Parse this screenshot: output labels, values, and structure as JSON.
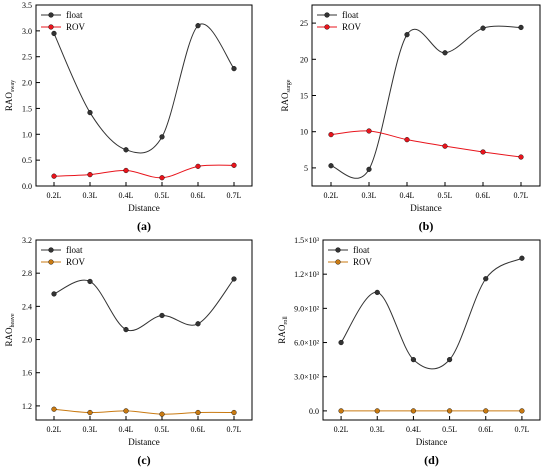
{
  "chart_data": [
    {
      "type": "line",
      "panel_label": "(a)",
      "xlabel": "Distance",
      "ylabel": "RAO",
      "ylabel_sub": "sway",
      "categories": [
        "0.2L",
        "0.3L",
        "0.4L",
        "0.5L",
        "0.6L",
        "0.7L"
      ],
      "ylim": [
        0,
        3.5
      ],
      "yticks": [
        0.0,
        0.5,
        1.0,
        1.5,
        2.0,
        2.5,
        3.0,
        3.5
      ],
      "ytick_labels": [
        "0.0",
        "0.5",
        "1.0",
        "1.5",
        "2.0",
        "2.5",
        "3.0",
        "3.5"
      ],
      "legend": "top-left",
      "series": [
        {
          "name": "float",
          "color": "#333333",
          "values": [
            2.95,
            1.42,
            0.7,
            0.95,
            3.1,
            2.27
          ]
        },
        {
          "name": "ROV",
          "color": "#e8141c",
          "values": [
            0.19,
            0.22,
            0.3,
            0.16,
            0.38,
            0.4
          ]
        }
      ]
    },
    {
      "type": "line",
      "panel_label": "(b)",
      "xlabel": "Distance",
      "ylabel": "RAO",
      "ylabel_sub": "surge",
      "categories": [
        "0.2L",
        "0.3L",
        "0.4L",
        "0.5L",
        "0.6L",
        "0.7L"
      ],
      "ylim": [
        2.5,
        27.5
      ],
      "yticks": [
        5,
        10,
        15,
        20,
        25
      ],
      "ytick_labels": [
        "5",
        "10",
        "15",
        "20",
        "25"
      ],
      "legend": "top-left",
      "series": [
        {
          "name": "float",
          "color": "#333333",
          "values": [
            5.3,
            4.8,
            23.4,
            20.9,
            24.3,
            24.4
          ]
        },
        {
          "name": "ROV",
          "color": "#e8141c",
          "values": [
            9.6,
            10.1,
            8.9,
            8.0,
            7.2,
            6.5
          ]
        }
      ]
    },
    {
      "type": "line",
      "panel_label": "(c)",
      "xlabel": "Distance",
      "ylabel": "RAO",
      "ylabel_sub": "heave",
      "categories": [
        "0.2L",
        "0.3L",
        "0.4L",
        "0.5L",
        "0.6L",
        "0.7L"
      ],
      "ylim": [
        1.03,
        3.2
      ],
      "yticks": [
        1.2,
        1.6,
        2.0,
        2.4,
        2.8,
        3.2
      ],
      "ytick_labels": [
        "1.2",
        "1.6",
        "2.0",
        "2.4",
        "2.8",
        "3.2"
      ],
      "legend": "top-left",
      "series": [
        {
          "name": "float",
          "color": "#333333",
          "values": [
            2.55,
            2.7,
            2.12,
            2.29,
            2.19,
            2.73
          ]
        },
        {
          "name": "ROV",
          "color": "#c97a12",
          "values": [
            1.16,
            1.12,
            1.14,
            1.1,
            1.12,
            1.12
          ]
        }
      ]
    },
    {
      "type": "line",
      "panel_label": "(d)",
      "xlabel": "Distance",
      "ylabel": "RAO",
      "ylabel_sub": "roll",
      "categories": [
        "0.2L",
        "0.3L",
        "0.4L",
        "0.5L",
        "0.6L",
        "0.7L"
      ],
      "ylim": [
        -80,
        1500
      ],
      "yticks": [
        0,
        300,
        600,
        900,
        1200,
        1500
      ],
      "ytick_labels": [
        "0.0",
        "3.0×10²",
        "6.0×10²",
        "9.0×10²",
        "1.2×10³",
        "1.5×10³"
      ],
      "legend": "top-left",
      "series": [
        {
          "name": "float",
          "color": "#333333",
          "values": [
            600,
            1040,
            450,
            450,
            1160,
            1340
          ]
        },
        {
          "name": "ROV",
          "color": "#c97a12",
          "values": [
            0,
            0,
            0,
            0,
            0,
            0
          ]
        }
      ]
    }
  ]
}
